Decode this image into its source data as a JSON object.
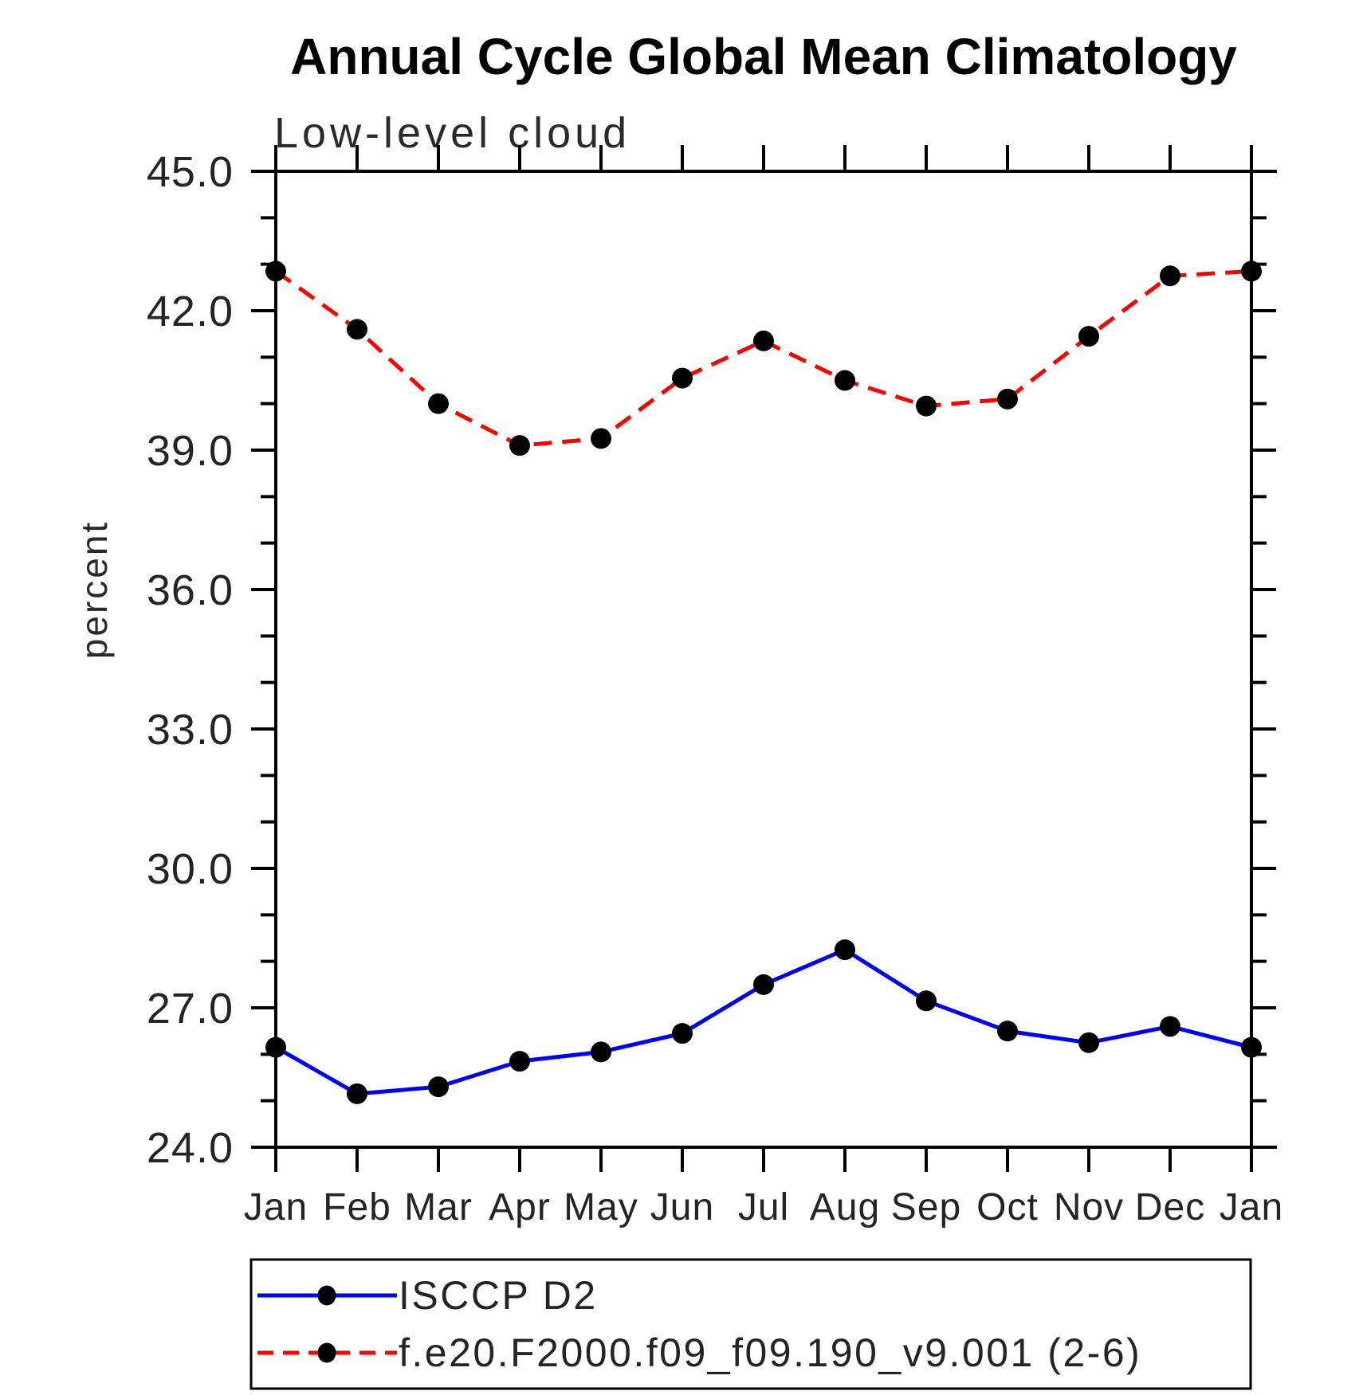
{
  "chart_data": {
    "type": "line",
    "title": "Annual Cycle Global Mean Climatology",
    "subtitle": "Low-level cloud",
    "ylabel": "percent",
    "categories": [
      "Jan",
      "Feb",
      "Mar",
      "Apr",
      "May",
      "Jun",
      "Jul",
      "Aug",
      "Sep",
      "Oct",
      "Nov",
      "Dec",
      "Jan"
    ],
    "series": [
      {
        "name": "ISCCP D2",
        "color": "#0000ff",
        "line_style": "solid",
        "marker": "filled-circle",
        "marker_color": "#000000",
        "values": [
          26.15,
          25.15,
          25.3,
          25.85,
          26.05,
          26.45,
          27.5,
          28.25,
          27.15,
          26.5,
          26.25,
          26.6,
          26.15
        ]
      },
      {
        "name": "f.e20.F2000.f09_f09.190_v9.001 (2-6)",
        "color": "#ff0000",
        "line_style": "dashed",
        "marker": "filled-circle",
        "marker_color": "#000000",
        "values": [
          42.85,
          41.6,
          40.0,
          39.1,
          39.25,
          40.55,
          41.35,
          40.5,
          39.95,
          40.1,
          41.45,
          42.75,
          42.85
        ]
      }
    ],
    "ylim": [
      24.0,
      45.0
    ],
    "ytick_major_step": 3.0,
    "ytick_minor_step": 1.0,
    "ytick_labels": [
      "45.0",
      "42.0",
      "39.0",
      "36.0",
      "33.0",
      "30.0",
      "27.0",
      "24.0"
    ],
    "grid": false,
    "legend_position": "bottom",
    "axis_color": "#000000",
    "tick_style": "outward-crossed-frame"
  }
}
